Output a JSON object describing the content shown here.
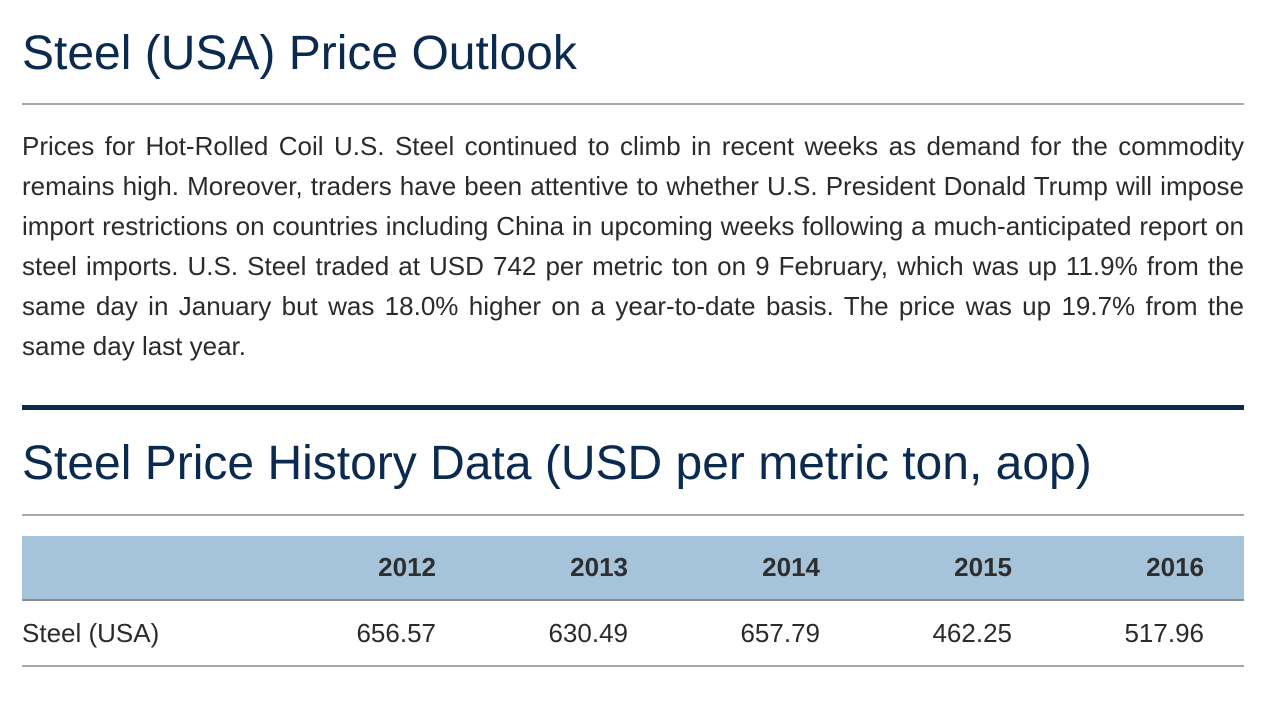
{
  "outlook": {
    "title": "Steel (USA) Price Outlook",
    "paragraph": "Prices for Hot-Rolled Coil U.S. Steel continued to climb in recent weeks as demand for the commodity remains high. Moreover, traders have been attentive to whether U.S. President Donald Trump will impose import restrictions on countries including China in upcoming weeks following a much-anticipated report on steel imports. U.S. Steel traded at USD 742 per metric ton on 9 February, which was up 11.9% from the same day in January but was 18.0% higher on a year-to-date basis. The price was up 19.7% from the same day last year."
  },
  "history": {
    "title": "Steel Price History Data (USD per metric ton, aop)",
    "table": {
      "label_header": "",
      "years": [
        "2012",
        "2013",
        "2014",
        "2015",
        "2016"
      ],
      "rows": [
        {
          "label": "Steel (USA)",
          "values": [
            "656.57",
            "630.49",
            "657.79",
            "462.25",
            "517.96"
          ]
        }
      ]
    }
  },
  "colors": {
    "heading": "#0b2a4f",
    "table_header_bg": "#a5c3d9",
    "divider_thick": "#0b2a4f",
    "divider_thin": "#a8a8a8"
  }
}
